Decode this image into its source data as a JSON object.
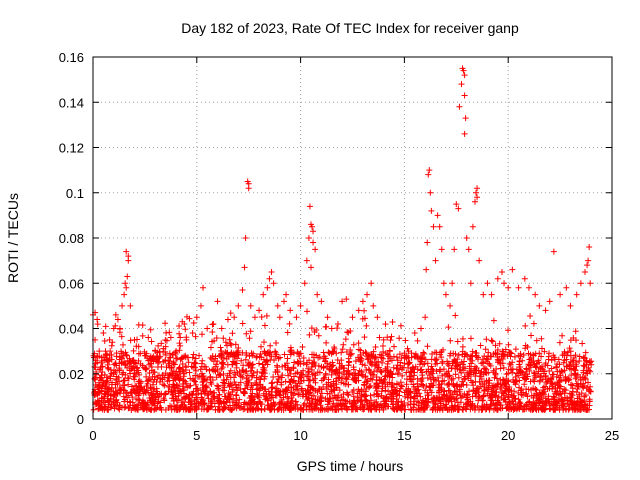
{
  "chart_data": {
    "type": "scatter",
    "title": "Day 182 of 2023, Rate Of TEC Index for receiver ganp",
    "xlabel": "GPS time / hours",
    "ylabel": "ROTI / TECUs",
    "xlim": [
      0,
      25
    ],
    "ylim": [
      0,
      0.16
    ],
    "xticks": [
      0,
      5,
      10,
      15,
      20,
      25
    ],
    "xtick_labels": [
      "0",
      "5",
      "10",
      "15",
      "20",
      "25"
    ],
    "yticks": [
      0,
      0.02,
      0.04,
      0.06,
      0.08,
      0.1,
      0.12,
      0.14,
      0.16
    ],
    "ytick_labels": [
      "0",
      "0.02",
      "0.04",
      "0.06",
      "0.08",
      "0.1",
      "0.12",
      "0.14",
      "0.16"
    ],
    "grid": true,
    "marker": "+",
    "marker_color": "#ff0000",
    "series": [
      {
        "name": "ROTI",
        "points": [
          [
            0.0,
            0.046
          ],
          [
            0.1,
            0.047
          ],
          [
            0.2,
            0.044
          ],
          [
            0.1,
            0.035
          ],
          [
            0.3,
            0.03
          ],
          [
            0.5,
            0.038
          ],
          [
            0.6,
            0.03
          ],
          [
            0.8,
            0.035
          ],
          [
            1.0,
            0.04
          ],
          [
            1.1,
            0.046
          ],
          [
            1.2,
            0.044
          ],
          [
            1.3,
            0.04
          ],
          [
            1.4,
            0.05
          ],
          [
            1.5,
            0.055
          ],
          [
            1.55,
            0.06
          ],
          [
            1.6,
            0.058
          ],
          [
            1.65,
            0.063
          ],
          [
            1.7,
            0.072
          ],
          [
            1.6,
            0.074
          ],
          [
            1.7,
            0.07
          ],
          [
            1.8,
            0.05
          ],
          [
            2.0,
            0.035
          ],
          [
            2.2,
            0.032
          ],
          [
            2.5,
            0.028
          ],
          [
            2.8,
            0.026
          ],
          [
            3.0,
            0.03
          ],
          [
            3.2,
            0.027
          ],
          [
            3.5,
            0.032
          ],
          [
            3.7,
            0.029
          ],
          [
            4.0,
            0.03
          ],
          [
            4.2,
            0.036
          ],
          [
            4.3,
            0.043
          ],
          [
            4.4,
            0.042
          ],
          [
            4.5,
            0.035
          ],
          [
            4.8,
            0.038
          ],
          [
            5.0,
            0.045
          ],
          [
            5.2,
            0.05
          ],
          [
            5.3,
            0.058
          ],
          [
            5.5,
            0.04
          ],
          [
            5.8,
            0.042
          ],
          [
            6.0,
            0.052
          ],
          [
            6.2,
            0.04
          ],
          [
            6.5,
            0.044
          ],
          [
            6.8,
            0.045
          ],
          [
            7.0,
            0.05
          ],
          [
            7.2,
            0.057
          ],
          [
            7.3,
            0.067
          ],
          [
            7.35,
            0.08
          ],
          [
            7.45,
            0.105
          ],
          [
            7.5,
            0.104
          ],
          [
            7.5,
            0.102
          ],
          [
            7.6,
            0.05
          ],
          [
            7.8,
            0.045
          ],
          [
            8.0,
            0.048
          ],
          [
            8.2,
            0.055
          ],
          [
            8.4,
            0.058
          ],
          [
            8.5,
            0.062
          ],
          [
            8.6,
            0.065
          ],
          [
            8.7,
            0.06
          ],
          [
            8.9,
            0.05
          ],
          [
            9.0,
            0.045
          ],
          [
            9.2,
            0.052
          ],
          [
            9.3,
            0.055
          ],
          [
            9.5,
            0.048
          ],
          [
            9.8,
            0.045
          ],
          [
            10.0,
            0.05
          ],
          [
            10.2,
            0.06
          ],
          [
            10.3,
            0.07
          ],
          [
            10.4,
            0.08
          ],
          [
            10.45,
            0.094
          ],
          [
            10.5,
            0.086
          ],
          [
            10.55,
            0.085
          ],
          [
            10.6,
            0.083
          ],
          [
            10.6,
            0.078
          ],
          [
            10.7,
            0.075
          ],
          [
            10.5,
            0.067
          ],
          [
            10.8,
            0.055
          ],
          [
            11.0,
            0.052
          ],
          [
            11.3,
            0.045
          ],
          [
            11.5,
            0.04
          ],
          [
            11.8,
            0.042
          ],
          [
            12.0,
            0.052
          ],
          [
            12.2,
            0.053
          ],
          [
            12.5,
            0.045
          ],
          [
            12.8,
            0.048
          ],
          [
            13.0,
            0.052
          ],
          [
            13.2,
            0.055
          ],
          [
            13.4,
            0.06
          ],
          [
            13.5,
            0.05
          ],
          [
            13.7,
            0.045
          ],
          [
            14.0,
            0.035
          ],
          [
            14.3,
            0.03
          ],
          [
            14.5,
            0.032
          ],
          [
            14.8,
            0.025
          ],
          [
            15.0,
            0.028
          ],
          [
            15.2,
            0.03
          ],
          [
            15.5,
            0.038
          ],
          [
            15.8,
            0.04
          ],
          [
            16.0,
            0.045
          ],
          [
            16.05,
            0.066
          ],
          [
            16.1,
            0.078
          ],
          [
            16.15,
            0.108
          ],
          [
            16.2,
            0.11
          ],
          [
            16.25,
            0.1
          ],
          [
            16.3,
            0.092
          ],
          [
            16.4,
            0.085
          ],
          [
            16.5,
            0.07
          ],
          [
            16.6,
            0.09
          ],
          [
            16.7,
            0.085
          ],
          [
            16.8,
            0.075
          ],
          [
            16.9,
            0.06
          ],
          [
            17.0,
            0.055
          ],
          [
            17.2,
            0.05
          ],
          [
            17.3,
            0.06
          ],
          [
            17.4,
            0.075
          ],
          [
            17.5,
            0.095
          ],
          [
            17.6,
            0.093
          ],
          [
            17.65,
            0.138
          ],
          [
            17.75,
            0.148
          ],
          [
            17.8,
            0.155
          ],
          [
            17.85,
            0.154
          ],
          [
            17.9,
            0.152
          ],
          [
            17.9,
            0.143
          ],
          [
            17.95,
            0.133
          ],
          [
            17.9,
            0.126
          ],
          [
            18.0,
            0.08
          ],
          [
            18.1,
            0.075
          ],
          [
            18.2,
            0.06
          ],
          [
            18.3,
            0.085
          ],
          [
            18.4,
            0.096
          ],
          [
            18.45,
            0.1
          ],
          [
            18.5,
            0.102
          ],
          [
            18.5,
            0.098
          ],
          [
            18.6,
            0.07
          ],
          [
            18.8,
            0.055
          ],
          [
            19.0,
            0.06
          ],
          [
            19.2,
            0.055
          ],
          [
            19.5,
            0.062
          ],
          [
            19.7,
            0.065
          ],
          [
            19.8,
            0.06
          ],
          [
            20.0,
            0.058
          ],
          [
            20.2,
            0.066
          ],
          [
            20.5,
            0.058
          ],
          [
            20.8,
            0.062
          ],
          [
            21.0,
            0.058
          ],
          [
            21.3,
            0.055
          ],
          [
            21.5,
            0.05
          ],
          [
            21.8,
            0.048
          ],
          [
            22.0,
            0.052
          ],
          [
            22.2,
            0.074
          ],
          [
            22.5,
            0.055
          ],
          [
            22.8,
            0.058
          ],
          [
            23.0,
            0.05
          ],
          [
            23.3,
            0.055
          ],
          [
            23.5,
            0.06
          ],
          [
            23.7,
            0.065
          ],
          [
            23.8,
            0.068
          ],
          [
            23.85,
            0.07
          ],
          [
            23.9,
            0.076
          ],
          [
            23.95,
            0.06
          ]
        ]
      }
    ],
    "band": {
      "description_note": "dense baseline cloud of ROTI values",
      "low": 0.004,
      "high": 0.03
    }
  }
}
